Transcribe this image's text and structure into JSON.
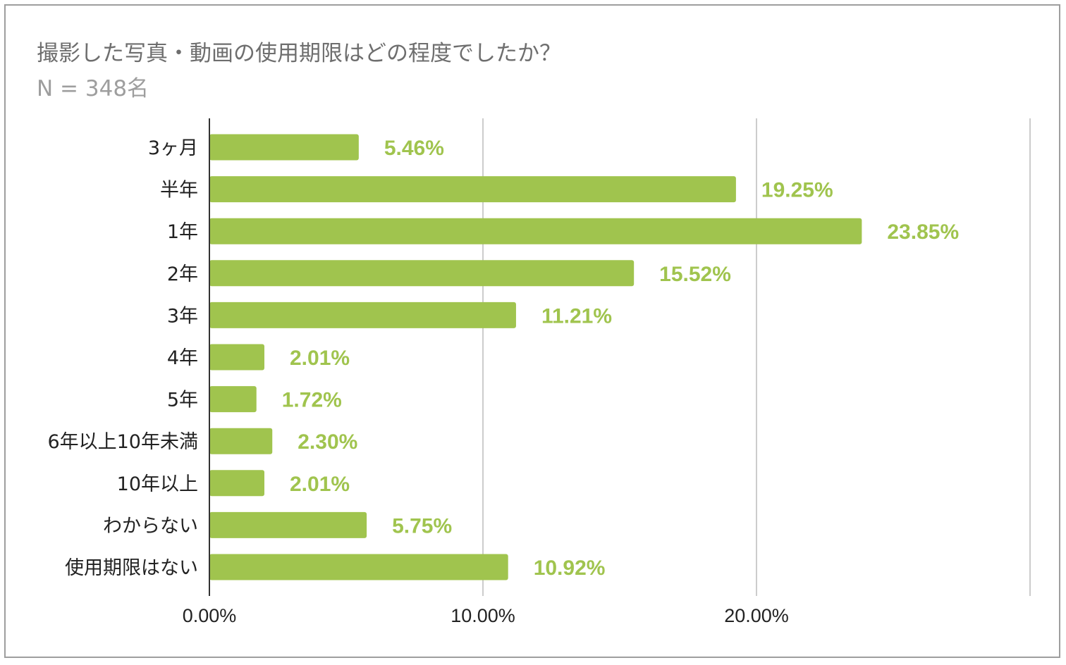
{
  "title": "撮影した写真・動画の使用期限はどの程度でしたか？",
  "subtitle": "N = 348名",
  "colors": {
    "bar": "#a0c44e",
    "label": "#a0c44e",
    "grid": "#cccccc",
    "axis": "#333333",
    "text": "#222222",
    "title": "#6e6e6e",
    "subtitle": "#9e9e9e",
    "border": "#9e9e9e"
  },
  "chart_data": {
    "type": "bar",
    "orientation": "horizontal",
    "categories": [
      "3ヶ月",
      "半年",
      "1年",
      "2年",
      "3年",
      "4年",
      "5年",
      "6年以上10年未満",
      "10年以上",
      "わからない",
      "使用期限はない"
    ],
    "values": [
      5.46,
      19.25,
      23.85,
      15.52,
      11.21,
      2.01,
      1.72,
      2.3,
      2.01,
      5.75,
      10.92
    ],
    "data_labels": [
      "5.46%",
      "19.25%",
      "23.85%",
      "15.52%",
      "11.21%",
      "2.01%",
      "1.72%",
      "2.30%",
      "2.01%",
      "5.75%",
      "10.92%"
    ],
    "xticks": [
      "0.00%",
      "10.00%",
      "20.00%"
    ],
    "xlim": [
      0,
      30
    ],
    "grid": true,
    "legend": "none"
  }
}
